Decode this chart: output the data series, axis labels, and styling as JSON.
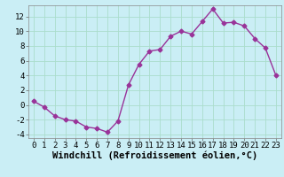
{
  "x": [
    0,
    1,
    2,
    3,
    4,
    5,
    6,
    7,
    8,
    9,
    10,
    11,
    12,
    13,
    14,
    15,
    16,
    17,
    18,
    19,
    20,
    21,
    22,
    23
  ],
  "y": [
    0.5,
    -0.3,
    -1.5,
    -2.0,
    -2.2,
    -3.0,
    -3.2,
    -3.7,
    -2.2,
    2.7,
    5.5,
    7.3,
    7.5,
    9.3,
    10.0,
    9.6,
    11.3,
    13.0,
    11.1,
    11.2,
    10.7,
    9.0,
    7.7,
    4.0
  ],
  "line_color": "#993399",
  "marker": "D",
  "markersize": 2.5,
  "linewidth": 1.0,
  "xlabel": "Windchill (Refroidissement éolien,°C)",
  "xlim": [
    -0.5,
    23.5
  ],
  "ylim": [
    -4.5,
    13.5
  ],
  "yticks": [
    -4,
    -2,
    0,
    2,
    4,
    6,
    8,
    10,
    12
  ],
  "xticks": [
    0,
    1,
    2,
    3,
    4,
    5,
    6,
    7,
    8,
    9,
    10,
    11,
    12,
    13,
    14,
    15,
    16,
    17,
    18,
    19,
    20,
    21,
    22,
    23
  ],
  "background_color": "#caeef5",
  "grid_color": "#aaddcc",
  "tick_fontsize": 6.5,
  "xlabel_fontsize": 7.5
}
